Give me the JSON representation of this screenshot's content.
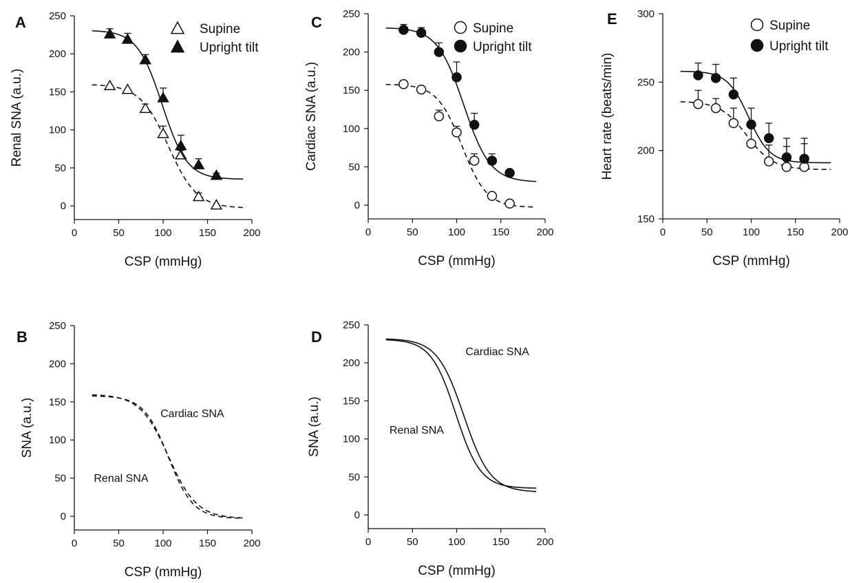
{
  "chart_data": [
    {
      "panel": "A",
      "type": "line",
      "xlabel": "CSP (mmHg)",
      "ylabel": "Renal SNA (a.u.)",
      "xlim": [
        0,
        200
      ],
      "ylim": [
        -18,
        250
      ],
      "xticks": [
        0,
        50,
        100,
        150,
        200
      ],
      "yticks": [
        0,
        50,
        100,
        150,
        200,
        250
      ],
      "legend": "top-right",
      "series": [
        {
          "name": "Supine",
          "marker": "triangle-open",
          "line": "dashed",
          "x": [
            40,
            60,
            80,
            100,
            120,
            140,
            160
          ],
          "y": [
            158,
            153,
            128,
            95,
            67,
            12,
            1
          ],
          "err": [
            0,
            0,
            6,
            10,
            6,
            5,
            0
          ],
          "fit": {
            "top": 160,
            "bottom": -3,
            "x50": 106,
            "slope": 16
          }
        },
        {
          "name": "Upright tilt",
          "marker": "triangle-filled",
          "line": "solid",
          "x": [
            40,
            60,
            80,
            100,
            120,
            140,
            160
          ],
          "y": [
            226,
            219,
            192,
            142,
            79,
            54,
            40
          ],
          "err": [
            7,
            8,
            7,
            13,
            14,
            8,
            3
          ],
          "fit": {
            "top": 231,
            "bottom": 35,
            "x50": 99,
            "slope": 14
          }
        }
      ]
    },
    {
      "panel": "C",
      "type": "line",
      "xlabel": "CSP (mmHg)",
      "ylabel": "Cardiac SNA (a.u.)",
      "xlim": [
        0,
        200
      ],
      "ylim": [
        -18,
        250
      ],
      "xticks": [
        0,
        50,
        100,
        150,
        200
      ],
      "yticks": [
        0,
        50,
        100,
        150,
        200,
        250
      ],
      "legend": "top-right",
      "series": [
        {
          "name": "Supine",
          "marker": "circle-open",
          "line": "dashed",
          "x": [
            40,
            60,
            80,
            100,
            120,
            140,
            160
          ],
          "y": [
            158,
            151,
            116,
            95,
            58,
            12,
            2
          ],
          "err": [
            0,
            0,
            8,
            8,
            9,
            0,
            0
          ],
          "fit": {
            "top": 158,
            "bottom": -3,
            "x50": 106,
            "slope": 14
          }
        },
        {
          "name": "Upright tilt",
          "marker": "circle-filled",
          "line": "solid",
          "x": [
            40,
            60,
            80,
            100,
            120,
            140,
            160
          ],
          "y": [
            229,
            225,
            200,
            167,
            105,
            58,
            42
          ],
          "err": [
            7,
            7,
            12,
            20,
            15,
            9,
            0
          ],
          "fit": {
            "top": 232,
            "bottom": 30,
            "x50": 108,
            "slope": 15
          }
        }
      ]
    },
    {
      "panel": "E",
      "type": "line",
      "xlabel": "CSP (mmHg)",
      "ylabel": "Heart rate (beats/min)",
      "xlim": [
        0,
        200
      ],
      "ylim": [
        150,
        300
      ],
      "xticks": [
        0,
        50,
        100,
        150,
        200
      ],
      "yticks": [
        150,
        200,
        250,
        300
      ],
      "legend": "top-right",
      "series": [
        {
          "name": "Supine",
          "marker": "circle-open",
          "line": "dashed",
          "x": [
            40,
            60,
            80,
            100,
            120,
            140,
            160
          ],
          "y": [
            234,
            231,
            220,
            205,
            192,
            188,
            188
          ],
          "err": [
            10,
            7,
            11,
            12,
            12,
            15,
            17
          ],
          "fit": {
            "top": 236,
            "bottom": 186,
            "x50": 95,
            "slope": 15
          }
        },
        {
          "name": "Upright tilt",
          "marker": "circle-filled",
          "line": "solid",
          "x": [
            40,
            60,
            80,
            100,
            120,
            140,
            160
          ],
          "y": [
            255,
            253,
            241,
            219,
            209,
            195,
            194
          ],
          "err": [
            9,
            10,
            12,
            12,
            11,
            14,
            15
          ],
          "fit": {
            "top": 258,
            "bottom": 191,
            "x50": 97,
            "slope": 12
          }
        }
      ]
    },
    {
      "panel": "B",
      "type": "line",
      "xlabel": "CSP (mmHg)",
      "ylabel": "SNA (a.u.)",
      "xlim": [
        0,
        200
      ],
      "ylim": [
        -18,
        250
      ],
      "xticks": [
        0,
        50,
        100,
        150,
        200
      ],
      "yticks": [
        0,
        50,
        100,
        150,
        200,
        250
      ],
      "annotations": [
        {
          "text": "Cardiac SNA",
          "x": 97,
          "y": 130
        },
        {
          "text": "Renal SNA",
          "x": 22,
          "y": 45
        }
      ],
      "series": [
        {
          "name": "Cardiac SNA",
          "line": "dashed",
          "fit": {
            "top": 158,
            "bottom": -3,
            "x50": 106,
            "slope": 14
          }
        },
        {
          "name": "Renal SNA",
          "line": "dashed",
          "fit": {
            "top": 160,
            "bottom": -3,
            "x50": 106,
            "slope": 16
          }
        }
      ]
    },
    {
      "panel": "D",
      "type": "line",
      "xlabel": "CSP (mmHg)",
      "ylabel": "SNA (a.u.)",
      "xlim": [
        0,
        200
      ],
      "ylim": [
        -18,
        250
      ],
      "xticks": [
        0,
        50,
        100,
        150,
        200
      ],
      "yticks": [
        0,
        50,
        100,
        150,
        200,
        250
      ],
      "annotations": [
        {
          "text": "Cardiac SNA",
          "x": 110,
          "y": 210
        },
        {
          "text": "Renal SNA",
          "x": 24,
          "y": 107
        }
      ],
      "series": [
        {
          "name": "Cardiac SNA",
          "line": "solid",
          "fit": {
            "top": 232,
            "bottom": 30,
            "x50": 108,
            "slope": 15
          }
        },
        {
          "name": "Renal SNA",
          "line": "solid",
          "fit": {
            "top": 231,
            "bottom": 35,
            "x50": 99,
            "slope": 14
          }
        }
      ]
    }
  ]
}
